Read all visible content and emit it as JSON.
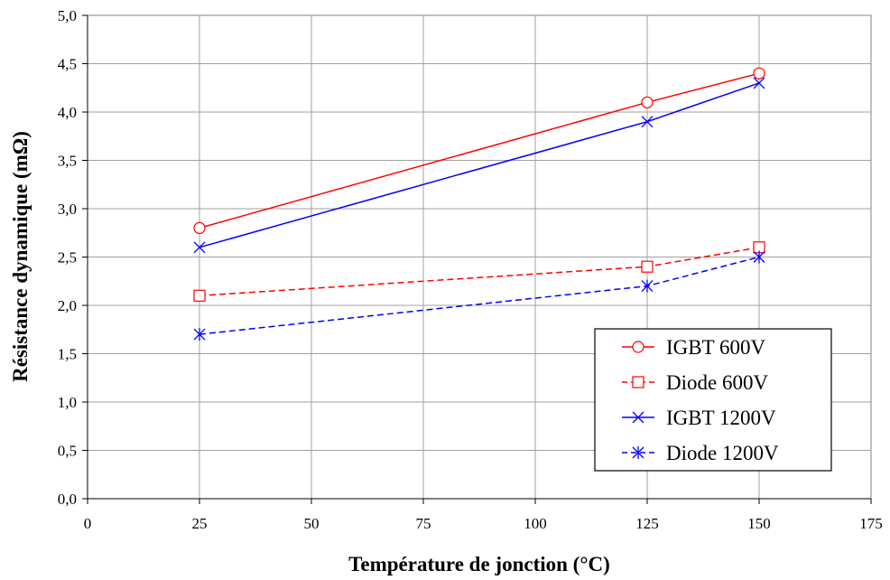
{
  "chart_data": {
    "type": "line",
    "title": "",
    "xlabel": "Température de jonction (°C)",
    "ylabel": "Résistance dynamique (mΩ)",
    "xlim": [
      0,
      175
    ],
    "ylim": [
      0,
      5
    ],
    "x_ticks": [
      0,
      25,
      50,
      75,
      100,
      125,
      150,
      175
    ],
    "x_tick_labels": [
      "0",
      "25",
      "50",
      "75",
      "100",
      "125",
      "150",
      "175"
    ],
    "y_ticks": [
      0,
      0.5,
      1,
      1.5,
      2,
      2.5,
      3,
      3.5,
      4,
      4.5,
      5
    ],
    "y_tick_labels": [
      "0,0",
      "0,5",
      "1,0",
      "1,5",
      "2,0",
      "2,5",
      "3,0",
      "3,5",
      "4,0",
      "4,5",
      "5,0"
    ],
    "grid": true,
    "legend_position": "bottom-right",
    "x": [
      25,
      125,
      150
    ],
    "series": [
      {
        "name": "IGBT 600V",
        "values": [
          2.8,
          4.1,
          4.4
        ],
        "color": "#ff0000",
        "dash": "solid",
        "marker": "circle"
      },
      {
        "name": "Diode 600V",
        "values": [
          2.1,
          2.4,
          2.6
        ],
        "color": "#ff0000",
        "dash": "dashed",
        "marker": "square"
      },
      {
        "name": "IGBT 1200V",
        "values": [
          2.6,
          3.9,
          4.3
        ],
        "color": "#0000ff",
        "dash": "solid",
        "marker": "x"
      },
      {
        "name": "Diode 1200V",
        "values": [
          1.7,
          2.2,
          2.5
        ],
        "color": "#0000ff",
        "dash": "dashed",
        "marker": "star"
      }
    ]
  }
}
